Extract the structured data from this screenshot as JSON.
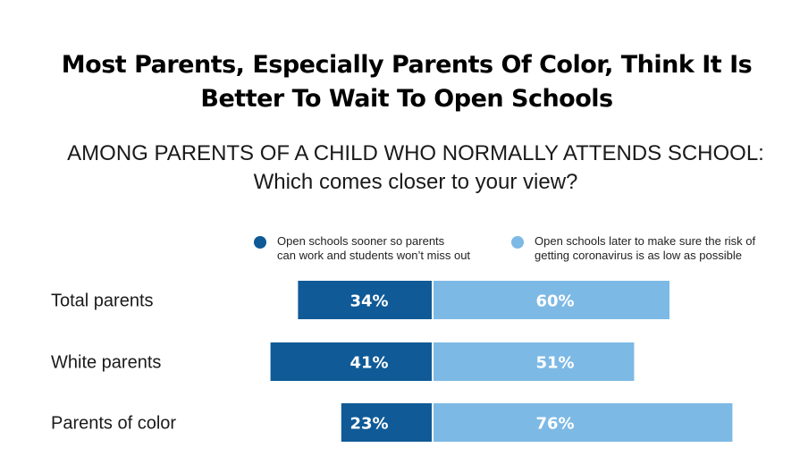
{
  "title": "Most Parents, Especially Parents Of Color, Think It Is Better To Wait To Open Schools",
  "subtitle_line1": "AMONG PARENTS OF A CHILD WHO NORMALLY ATTENDS SCHOOL:",
  "subtitle_line2": "Which comes closer to your view?",
  "colors": {
    "sooner": "#0f5a97",
    "later": "#7db9e5"
  },
  "chart_data": {
    "type": "bar",
    "orientation": "horizontal-diverging",
    "title": "Most Parents, Especially Parents Of Color, Think It Is Better To Wait To Open Schools",
    "subtitle": "AMONG PARENTS OF A CHILD WHO NORMALLY ATTENDS SCHOOL: Which comes closer to your view?",
    "categories": [
      "Total parents",
      "White parents",
      "Parents of color"
    ],
    "series": [
      {
        "name": "Open schools sooner so parents can work and students won't miss out",
        "values": [
          34,
          41,
          23
        ],
        "labels": [
          "34%",
          "41%",
          "23%"
        ]
      },
      {
        "name": "Open schools later to make sure the risk of getting coronavirus is as low as possible",
        "values": [
          60,
          51,
          76
        ],
        "labels": [
          "60%",
          "51%",
          "76%"
        ]
      }
    ],
    "legend": [
      {
        "line1": "Open schools sooner so parents",
        "line2": "can work and students won’t miss out"
      },
      {
        "line1": "Open schools later to make sure the risk of",
        "line2": "getting coronavirus is as low as possible"
      }
    ],
    "unit": "%",
    "legend_position": "top",
    "grid": false
  }
}
